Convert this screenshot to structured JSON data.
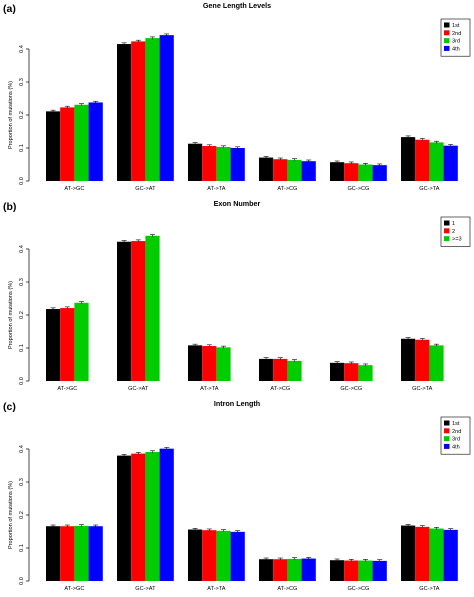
{
  "chart_data": [
    {
      "panel": "(a)",
      "type": "bar",
      "title": "Gene Length Levels",
      "ylabel": "Proportion of mutations (%)",
      "xlabel": "",
      "categories": [
        "AT->GC",
        "GC->AT",
        "AT->TA",
        "AT->CG",
        "GC->CG",
        "GC->TA"
      ],
      "ylim": [
        0,
        0.45
      ],
      "yticks": [
        "0.0",
        "0.1",
        "0.2",
        "0.3",
        "0.4"
      ],
      "legend_position": "top-right",
      "series": [
        {
          "name": "1st",
          "color": "#000000",
          "values": [
            0.211,
            0.415,
            0.113,
            0.071,
            0.057,
            0.133
          ]
        },
        {
          "name": "2nd",
          "color": "#ff0000",
          "values": [
            0.223,
            0.423,
            0.106,
            0.066,
            0.054,
            0.125
          ]
        },
        {
          "name": "3rd",
          "color": "#00cd00",
          "values": [
            0.231,
            0.433,
            0.103,
            0.064,
            0.05,
            0.117
          ]
        },
        {
          "name": "4th",
          "color": "#0000ff",
          "values": [
            0.238,
            0.442,
            0.1,
            0.06,
            0.048,
            0.107
          ]
        }
      ]
    },
    {
      "panel": "(b)",
      "type": "bar",
      "title": "Exon Number",
      "ylabel": "Proportion of mutations (%)",
      "xlabel": "",
      "categories": [
        "AT->GC",
        "GC->AT",
        "AT->TA",
        "AT->CG",
        "GC->CG",
        "GC->TA"
      ],
      "ylim": [
        0,
        0.45
      ],
      "yticks": [
        "0.0",
        "0.1",
        "0.2",
        "0.3",
        "0.4"
      ],
      "legend_position": "top-right",
      "series": [
        {
          "name": "1",
          "color": "#000000",
          "values": [
            0.218,
            0.422,
            0.108,
            0.067,
            0.055,
            0.128
          ]
        },
        {
          "name": "2",
          "color": "#ff0000",
          "values": [
            0.221,
            0.424,
            0.106,
            0.067,
            0.054,
            0.125
          ]
        },
        {
          "name": ">=3",
          "color": "#00cd00",
          "values": [
            0.237,
            0.44,
            0.102,
            0.061,
            0.048,
            0.108
          ]
        }
      ]
    },
    {
      "panel": "(c)",
      "type": "bar",
      "title": "Intron Length",
      "ylabel": "Proportion of mutations (%)",
      "xlabel": "",
      "categories": [
        "AT->GC",
        "GC->AT",
        "AT->TA",
        "AT->CG",
        "GC->CG",
        "GC->TA"
      ],
      "ylim": [
        0,
        0.45
      ],
      "yticks": [
        "0.0",
        "0.1",
        "0.2",
        "0.3",
        "0.4"
      ],
      "legend_position": "top-right",
      "series": [
        {
          "name": "1st",
          "color": "#000000",
          "values": [
            0.166,
            0.38,
            0.156,
            0.066,
            0.063,
            0.168
          ]
        },
        {
          "name": "2nd",
          "color": "#ff0000",
          "values": [
            0.166,
            0.386,
            0.154,
            0.066,
            0.062,
            0.164
          ]
        },
        {
          "name": "3rd",
          "color": "#00cd00",
          "values": [
            0.167,
            0.391,
            0.152,
            0.067,
            0.062,
            0.159
          ]
        },
        {
          "name": "4th",
          "color": "#0000ff",
          "values": [
            0.166,
            0.401,
            0.149,
            0.068,
            0.061,
            0.155
          ]
        }
      ]
    }
  ]
}
